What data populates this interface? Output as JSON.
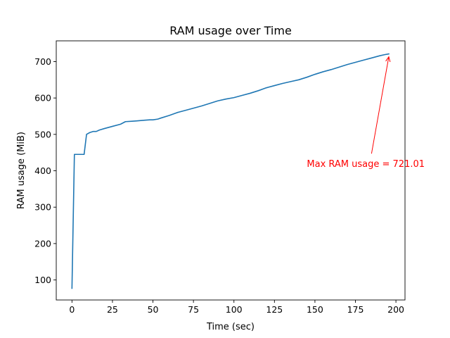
{
  "chart_data": {
    "type": "line",
    "title": "RAM usage over Time",
    "xlabel": "Time (sec)",
    "ylabel": "RAM usage (MiB)",
    "xlim": [
      -9.7,
      205.6
    ],
    "ylim": [
      45,
      757
    ],
    "xticks": [
      0,
      25,
      50,
      75,
      100,
      125,
      150,
      175,
      200
    ],
    "yticks": [
      100,
      200,
      300,
      400,
      500,
      600,
      700
    ],
    "grid": false,
    "legend": "none",
    "line_color": "#1f77b4",
    "series": [
      {
        "x": [
          0,
          1.5,
          3,
          5,
          7.5,
          9,
          11,
          13,
          15,
          17,
          20,
          25,
          30,
          33,
          37,
          40,
          45,
          48,
          50,
          53,
          55,
          60,
          65,
          70,
          75,
          80,
          85,
          90,
          95,
          100,
          105,
          110,
          115,
          120,
          125,
          130,
          135,
          140,
          145,
          150,
          155,
          160,
          165,
          170,
          175,
          180,
          185,
          190,
          193,
          195.6
        ],
        "values": [
          77,
          445,
          445,
          445,
          445,
          500,
          505,
          508,
          508,
          512,
          516,
          522,
          528,
          535,
          536,
          537,
          539,
          540,
          540,
          542,
          545,
          552,
          560,
          566,
          572,
          578,
          585,
          592,
          597,
          601,
          607,
          613,
          620,
          628,
          634,
          640,
          645,
          650,
          657,
          665,
          672,
          678,
          685,
          692,
          698,
          704,
          710,
          716,
          719,
          721
        ]
      }
    ],
    "annotation": {
      "text": "Max RAM usage = 721.01",
      "x": 195.6,
      "y": 721.01,
      "text_x": 145,
      "text_y": 420,
      "color": "#ff0000"
    }
  }
}
